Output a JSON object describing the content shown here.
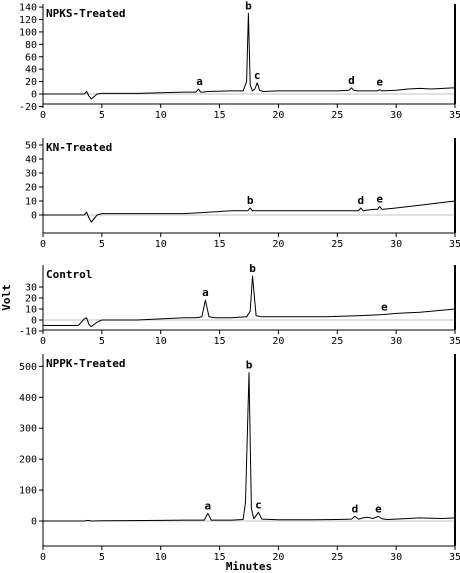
{
  "chart_data": [
    {
      "type": "line",
      "title": "NPKS-Treated",
      "xlabel": "",
      "ylabel": "",
      "xlim": [
        0,
        35
      ],
      "ylim": [
        -20,
        145
      ],
      "x_ticks": [
        "0",
        "5",
        "10",
        "15",
        "20",
        "25",
        "30",
        "35"
      ],
      "y_ticks": [
        "140",
        "120",
        "100",
        "80",
        "60",
        "40",
        "20",
        "0",
        "-20"
      ],
      "series": [
        {
          "x": [
            0,
            3.5,
            3.7,
            3.9,
            4.1,
            4.6,
            5,
            8,
            10,
            12,
            13,
            13.2,
            13.4,
            13.6,
            14,
            16,
            17,
            17.3,
            17.45,
            17.6,
            17.8,
            18,
            18.2,
            18.4,
            18.7,
            20,
            23,
            25,
            26,
            26.2,
            26.4,
            26.7,
            27.5,
            28.4,
            28.6,
            28.8,
            30,
            31,
            32,
            33,
            34,
            35
          ],
          "y": [
            0,
            0,
            4,
            -3,
            -8,
            0,
            1,
            1,
            2,
            3,
            3,
            8,
            3,
            3,
            4,
            5,
            5,
            20,
            130,
            15,
            5,
            8,
            18,
            6,
            4,
            5,
            5,
            5,
            6,
            10,
            6,
            5,
            5,
            5,
            7,
            5,
            6,
            8,
            9,
            8,
            9,
            10
          ]
        }
      ],
      "annotations": [
        {
          "text": "a",
          "x": 13.3,
          "y": 8
        },
        {
          "text": "b",
          "x": 17.45,
          "y": 130
        },
        {
          "text": "c",
          "x": 18.2,
          "y": 18
        },
        {
          "text": "d",
          "x": 26.2,
          "y": 10
        },
        {
          "text": "e",
          "x": 28.6,
          "y": 7
        }
      ]
    },
    {
      "type": "line",
      "title": "KN-Treated",
      "xlabel": "",
      "ylabel": "",
      "xlim": [
        0,
        35
      ],
      "ylim": [
        -20,
        55
      ],
      "x_ticks": [
        "0",
        "5",
        "10",
        "15",
        "20",
        "25",
        "30",
        "35"
      ],
      "y_ticks": [
        "50",
        "40",
        "30",
        "20",
        "10",
        "0"
      ],
      "series": [
        {
          "x": [
            0,
            3.5,
            3.7,
            3.9,
            4.1,
            4.6,
            5,
            10,
            12,
            14,
            16,
            17.4,
            17.6,
            17.8,
            20,
            23,
            26,
            26.8,
            27,
            27.2,
            28,
            28.4,
            28.6,
            28.8,
            30,
            32,
            34,
            35
          ],
          "y": [
            0,
            0,
            2,
            -2,
            -5,
            0,
            1,
            1,
            1,
            2,
            3,
            3,
            5,
            3,
            3,
            3,
            3,
            3,
            5,
            3,
            4,
            4,
            6,
            4,
            5,
            7,
            9,
            10
          ]
        }
      ],
      "annotations": [
        {
          "text": "b",
          "x": 17.6,
          "y": 5
        },
        {
          "text": "d",
          "x": 27,
          "y": 5
        },
        {
          "text": "e",
          "x": 28.6,
          "y": 6
        }
      ]
    },
    {
      "type": "line",
      "title": "Control",
      "xlabel": "",
      "ylabel": "Volt",
      "xlim": [
        0,
        35
      ],
      "ylim": [
        -20,
        50
      ],
      "x_ticks": [
        "0",
        "5",
        "10",
        "15",
        "20",
        "25",
        "30",
        "35"
      ],
      "y_ticks": [
        "30",
        "20",
        "10",
        "0",
        "-10"
      ],
      "series": [
        {
          "x": [
            0,
            3,
            3.5,
            3.7,
            3.9,
            4.1,
            4.6,
            5,
            8,
            10,
            12,
            13,
            13.5,
            13.8,
            14.1,
            14.6,
            16,
            17.3,
            17.6,
            17.8,
            18.1,
            18.5,
            20,
            24,
            27,
            29,
            30,
            32,
            33,
            34,
            35
          ],
          "y": [
            -5,
            -5,
            1,
            2,
            -4,
            -6,
            -2,
            0,
            0,
            1,
            2,
            2,
            3,
            18,
            3,
            2,
            2,
            3,
            8,
            40,
            4,
            3,
            3,
            3,
            4,
            5,
            6,
            7,
            8,
            9,
            10
          ]
        }
      ],
      "annotations": [
        {
          "text": "a",
          "x": 13.8,
          "y": 18
        },
        {
          "text": "b",
          "x": 17.8,
          "y": 40
        },
        {
          "text": "e",
          "x": 29,
          "y": 5
        }
      ]
    },
    {
      "type": "line",
      "title": "NPPK-Treated",
      "xlabel": "Minutes",
      "ylabel": "",
      "xlim": [
        0,
        35
      ],
      "ylim": [
        -50,
        540
      ],
      "x_ticks": [
        "0",
        "5",
        "10",
        "15",
        "20",
        "25",
        "30",
        "35"
      ],
      "y_ticks": [
        "500",
        "400",
        "300",
        "200",
        "100",
        "0"
      ],
      "series": [
        {
          "x": [
            0,
            3.5,
            3.8,
            4.1,
            5,
            10,
            12,
            13.7,
            14,
            14.3,
            14.8,
            16,
            17,
            17.2,
            17.5,
            17.7,
            17.9,
            18,
            18.3,
            18.6,
            20,
            23,
            25,
            26.2,
            26.5,
            26.8,
            27.2,
            27.6,
            28,
            28.5,
            28.8,
            29.2,
            30,
            31,
            32,
            33,
            34,
            35
          ],
          "y": [
            0,
            0,
            2,
            0,
            1,
            2,
            3,
            3,
            25,
            3,
            3,
            3,
            5,
            60,
            480,
            40,
            8,
            12,
            28,
            6,
            4,
            4,
            5,
            6,
            15,
            6,
            10,
            12,
            8,
            15,
            7,
            5,
            6,
            8,
            10,
            9,
            8,
            10
          ]
        }
      ],
      "annotations": [
        {
          "text": "a",
          "x": 14,
          "y": 25
        },
        {
          "text": "b",
          "x": 17.5,
          "y": 480
        },
        {
          "text": "c",
          "x": 18.3,
          "y": 28
        },
        {
          "text": "d",
          "x": 26.5,
          "y": 15
        },
        {
          "text": "e",
          "x": 28.5,
          "y": 15
        }
      ]
    }
  ]
}
